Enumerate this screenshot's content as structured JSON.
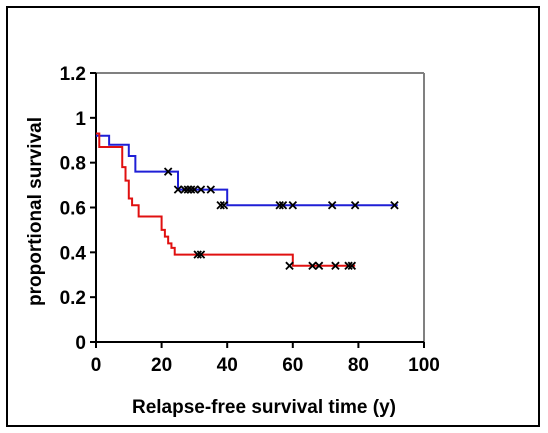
{
  "chart_data": {
    "type": "line",
    "title": "",
    "xlabel": "Relapse-free survival time (y)",
    "ylabel": "proportional survival",
    "xlim": [
      0,
      100
    ],
    "ylim": [
      0,
      1.2
    ],
    "x_ticks": [
      "0",
      "20",
      "40",
      "60",
      "80",
      "100"
    ],
    "y_ticks": [
      "0",
      "0.2",
      "0.4",
      "0.6",
      "0.8",
      "1",
      "1.2"
    ],
    "grid": false,
    "legend": "none",
    "series": [
      {
        "color": "#1f1fd6",
        "step_x": [
          0,
          2,
          4,
          6,
          10,
          12,
          22,
          25,
          38,
          40,
          92
        ],
        "step_y": [
          0.92,
          0.92,
          0.88,
          0.88,
          0.83,
          0.76,
          0.76,
          0.68,
          0.68,
          0.61,
          0.61
        ],
        "censored_x": [
          22,
          25,
          27,
          28,
          29,
          30,
          32,
          35,
          38,
          39,
          56,
          57,
          60,
          72,
          79,
          91
        ],
        "censored_y": [
          0.76,
          0.68,
          0.68,
          0.68,
          0.68,
          0.68,
          0.68,
          0.68,
          0.61,
          0.61,
          0.61,
          0.61,
          0.61,
          0.61,
          0.61,
          0.61
        ]
      },
      {
        "color": "#e01010",
        "step_x": [
          0,
          1,
          8,
          9,
          10,
          11,
          13,
          20,
          21,
          22,
          23,
          24,
          31,
          59,
          60,
          79
        ],
        "step_y": [
          0.93,
          0.87,
          0.78,
          0.72,
          0.64,
          0.61,
          0.56,
          0.5,
          0.47,
          0.44,
          0.42,
          0.39,
          0.39,
          0.39,
          0.34,
          0.34
        ],
        "censored_x": [
          31,
          32,
          59,
          66,
          68,
          73,
          77,
          78
        ],
        "censored_y": [
          0.39,
          0.39,
          0.34,
          0.34,
          0.34,
          0.34,
          0.34,
          0.34
        ]
      }
    ]
  }
}
